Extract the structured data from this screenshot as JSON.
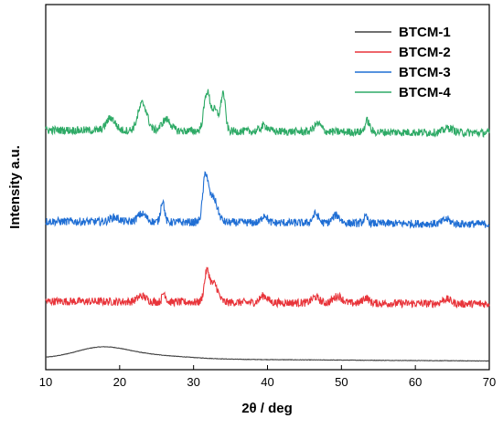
{
  "chart_data": {
    "type": "line",
    "xlabel": "2θ / deg",
    "ylabel": "Intensity a.u.",
    "xlim": [
      10,
      70
    ],
    "xticks": [
      "10",
      "20",
      "30",
      "40",
      "50",
      "60",
      "70"
    ],
    "y_ticks_shown": false,
    "grid": false,
    "legend_position": "top-right",
    "series": [
      {
        "name": "BTCM-1",
        "color": "#404040",
        "offset": 0,
        "baseline": 1.0,
        "peaks": [
          [
            17.5,
            0.9,
            3.5
          ],
          [
            24,
            0.3,
            5
          ]
        ],
        "noise": 0.02
      },
      {
        "name": "BTCM-2",
        "color": "#e8343a",
        "offset": 0,
        "baseline": 6.0,
        "peaks": [
          [
            23,
            0.5,
            0.6
          ],
          [
            26,
            0.8,
            0.25
          ],
          [
            31.8,
            2.6,
            0.35
          ],
          [
            32.8,
            1.6,
            0.5
          ],
          [
            39.5,
            0.6,
            0.5
          ],
          [
            46.5,
            0.5,
            0.5
          ],
          [
            49.5,
            0.6,
            0.6
          ],
          [
            53.3,
            0.5,
            0.4
          ],
          [
            64.2,
            0.4,
            0.6
          ]
        ],
        "noise": 0.35
      },
      {
        "name": "BTCM-3",
        "color": "#1f6ed4",
        "offset": 0,
        "baseline": 13.0,
        "peaks": [
          [
            19.3,
            0.4,
            0.6
          ],
          [
            23,
            0.7,
            0.6
          ],
          [
            25.8,
            1.9,
            0.25
          ],
          [
            31.6,
            3.8,
            0.35
          ],
          [
            32.6,
            2.2,
            0.6
          ],
          [
            39.6,
            0.7,
            0.35
          ],
          [
            46.5,
            0.8,
            0.4
          ],
          [
            49.3,
            0.7,
            0.5
          ],
          [
            53.3,
            0.5,
            0.3
          ],
          [
            64.2,
            0.4,
            0.5
          ]
        ],
        "noise": 0.35
      },
      {
        "name": "BTCM-4",
        "color": "#2eaa66",
        "offset": 0,
        "baseline": 21.0,
        "peaks": [
          [
            18.8,
            1.1,
            0.6
          ],
          [
            23.1,
            2.4,
            0.6
          ],
          [
            26.3,
            1.0,
            0.6
          ],
          [
            31.8,
            3.3,
            0.4
          ],
          [
            34.0,
            3.2,
            0.3
          ],
          [
            32.9,
            1.8,
            0.5
          ],
          [
            39.6,
            0.5,
            0.5
          ],
          [
            46.8,
            0.7,
            0.5
          ],
          [
            53.5,
            1.0,
            0.3
          ],
          [
            64.5,
            0.4,
            0.6
          ]
        ],
        "noise": 0.35
      }
    ]
  }
}
